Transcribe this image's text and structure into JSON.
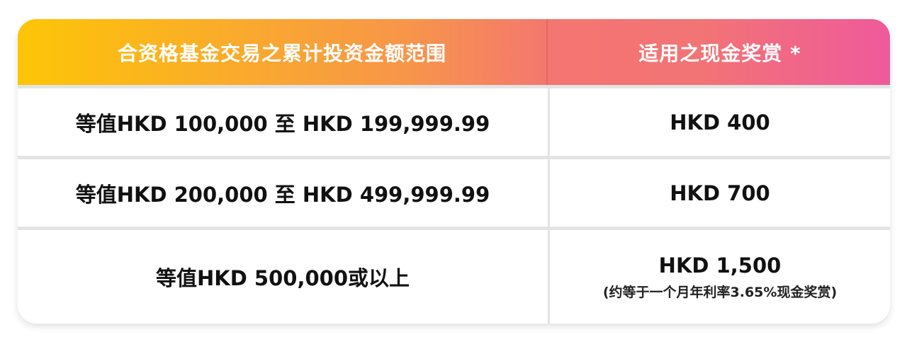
{
  "header": {
    "col1": "合资格基金交易之累计投资金额范围",
    "col2": "适用之现金奖赏 *"
  },
  "rows": [
    {
      "range": "等值HKD 100,000 至 HKD 199,999.99",
      "reward": "HKD 400"
    },
    {
      "range": "等值HKD 200,000 至 HKD 499,999.99",
      "reward": "HKD 700"
    },
    {
      "range": "等值HKD 500,000或以上",
      "reward": "HKD 1,500",
      "note": "(约等于一个月年利率3.65%现金奖赏)"
    }
  ],
  "colors": {
    "gradient_start": "#fdc506",
    "gradient_mid": "#f47572",
    "gradient_end": "#ef5a9b"
  }
}
